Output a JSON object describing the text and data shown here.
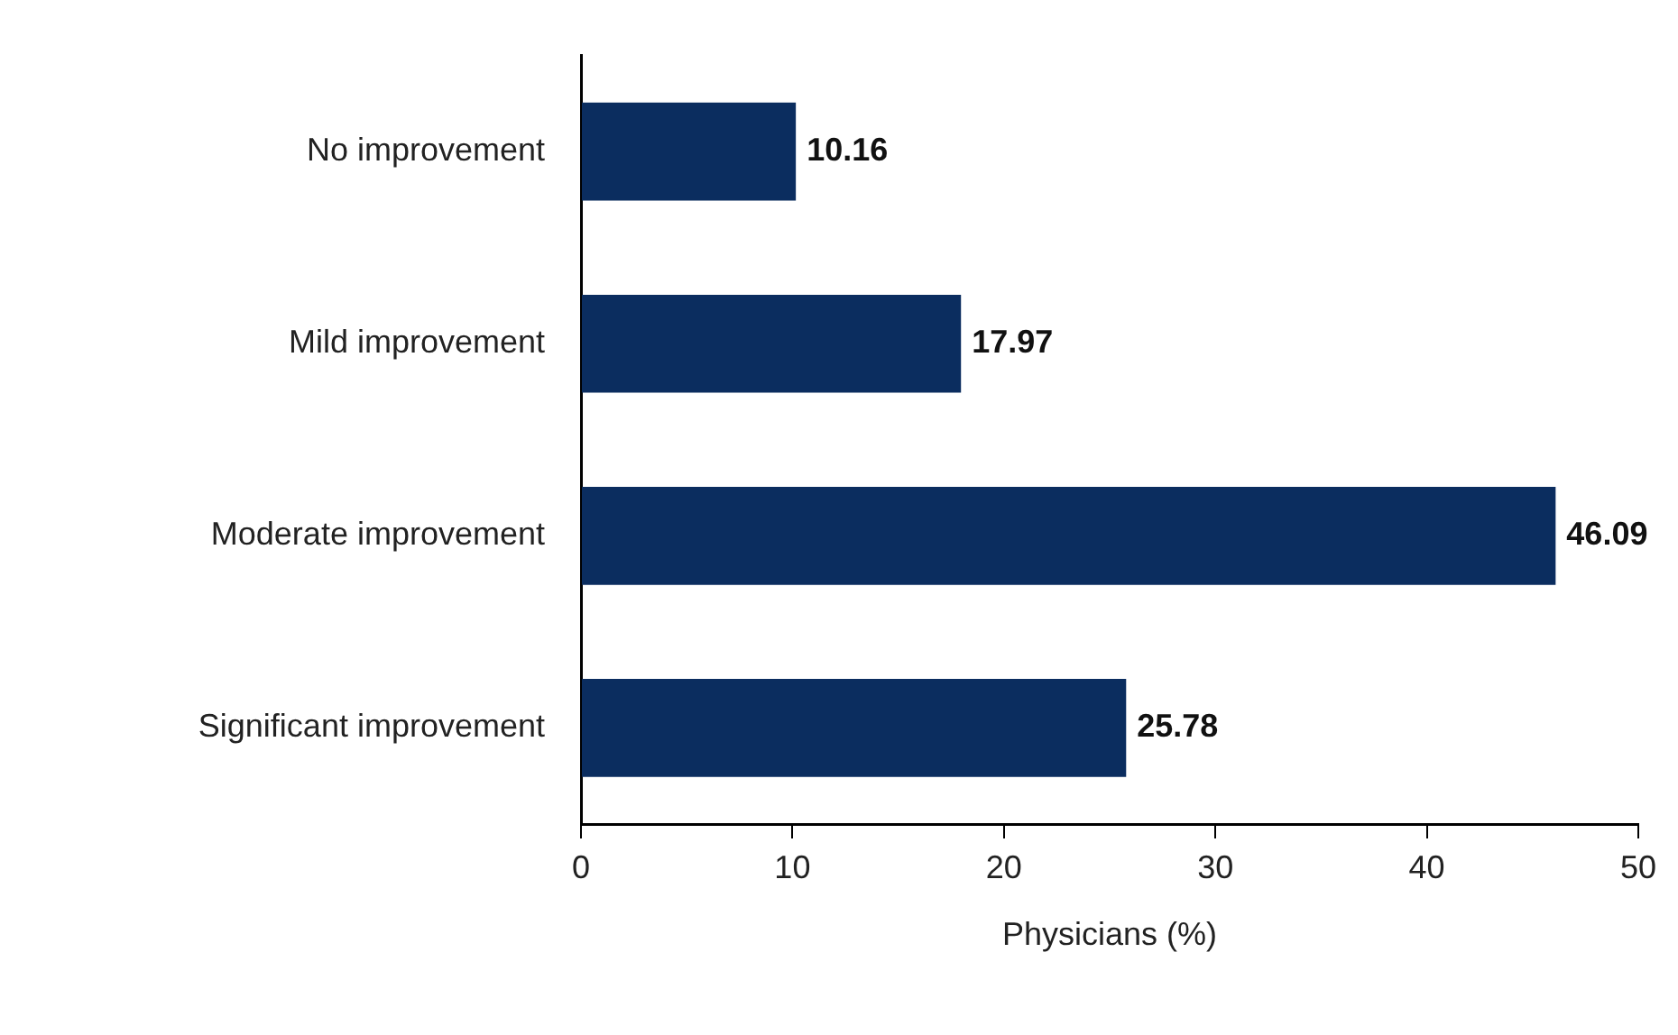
{
  "chart_data": {
    "type": "bar",
    "orientation": "horizontal",
    "xlabel": "Physicians (%)",
    "categories": [
      "No improvement",
      "Mild improvement",
      "Moderate improvement",
      "Significant improvement"
    ],
    "values": [
      10.16,
      17.97,
      46.09,
      25.78
    ],
    "color": "#0b2d5f",
    "xlim": [
      0,
      50
    ],
    "xticks": [
      0,
      10,
      20,
      30,
      40,
      50
    ],
    "data_labels": true,
    "legend": false,
    "grid": false
  }
}
